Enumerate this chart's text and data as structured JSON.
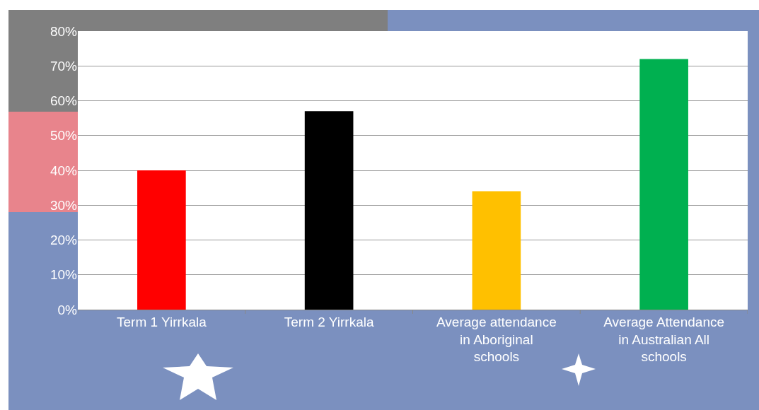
{
  "chart_data": {
    "type": "bar",
    "categories": [
      "Term 1 Yirrkala",
      "Term 2 Yirrkala",
      "Average attendance in Aboriginal schools",
      "Average Attendance in Australian All schools"
    ],
    "values": [
      40,
      57,
      34,
      72
    ],
    "colors": [
      "#ff0000",
      "#000000",
      "#ffc000",
      "#00b050"
    ],
    "ylim": [
      0,
      80
    ],
    "yticks": [
      {
        "value": 0,
        "label": "0%"
      },
      {
        "value": 10,
        "label": "10%"
      },
      {
        "value": 20,
        "label": "20%"
      },
      {
        "value": 30,
        "label": "30%"
      },
      {
        "value": 40,
        "label": "40%"
      },
      {
        "value": 50,
        "label": "50%"
      },
      {
        "value": 60,
        "label": "60%"
      },
      {
        "value": 70,
        "label": "70%"
      },
      {
        "value": 80,
        "label": "80%"
      }
    ],
    "grid": "y"
  }
}
